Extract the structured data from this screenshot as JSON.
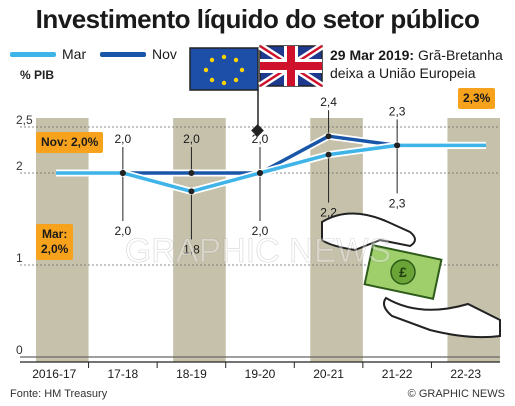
{
  "title": "Investimento líquido do setor público",
  "legend": [
    {
      "name": "Mar",
      "color": "#3fb4e8"
    },
    {
      "name": "Nov",
      "color": "#1a56a8"
    }
  ],
  "y_unit": "% PIB",
  "annotation": {
    "date": "29 Mar 2019:",
    "text_line1": "Grã-Bretanha",
    "text_line2": "deixa a União Europeia"
  },
  "callouts": {
    "nov_start_line1": "Nov: 2,0%",
    "mar_start_line1": "Mar:",
    "mar_start_line2": "2,0%",
    "end_value": "2,3%"
  },
  "source": "Fonte: HM Treasury",
  "credit": "© GRAPHIC NEWS",
  "watermark": "GRAPHIC NEWS",
  "chart_data": {
    "type": "line",
    "categories": [
      "2016-17",
      "17-18",
      "18-19",
      "19-20",
      "20-21",
      "21-22",
      "22-23"
    ],
    "ylim": [
      0,
      2.5
    ],
    "yticks": [
      "0",
      "1",
      "2",
      "2,5"
    ],
    "series": [
      {
        "name": "Mar",
        "values": [
          2.0,
          2.0,
          1.8,
          2.0,
          2.2,
          2.3,
          2.3
        ]
      },
      {
        "name": "Nov",
        "values": [
          2.0,
          2.0,
          2.0,
          2.0,
          2.4,
          2.3,
          2.3
        ]
      }
    ],
    "labels_above": [
      "2,0",
      "2,0",
      "2,0",
      "2,4",
      "2,3"
    ],
    "labels_below": [
      "2,0",
      "1,8",
      "2,0",
      "2,2",
      "2,3"
    ]
  },
  "colors": {
    "band": "#c6c1aa",
    "mar": "#3fb4e8",
    "nov": "#1a56a8",
    "orange": "#f6a21c"
  }
}
